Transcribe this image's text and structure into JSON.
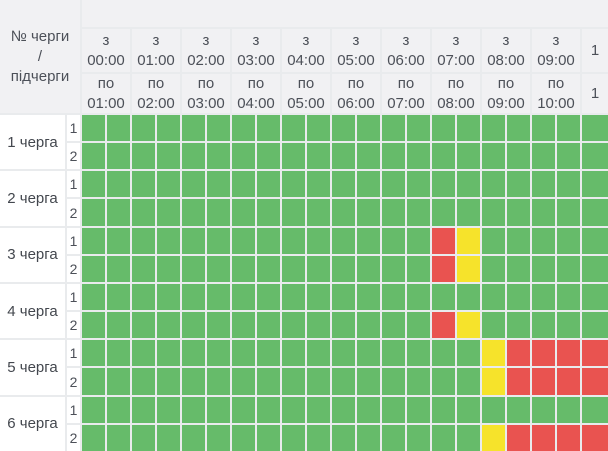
{
  "table": {
    "corner_label_lines": [
      "№ черги",
      "/",
      "підчерги"
    ],
    "time_columns": [
      {
        "from_prefix": "з",
        "from": "00:00",
        "to_prefix": "по",
        "to": "01:00"
      },
      {
        "from_prefix": "з",
        "from": "01:00",
        "to_prefix": "по",
        "to": "02:00"
      },
      {
        "from_prefix": "з",
        "from": "02:00",
        "to_prefix": "по",
        "to": "03:00"
      },
      {
        "from_prefix": "з",
        "from": "03:00",
        "to_prefix": "по",
        "to": "04:00"
      },
      {
        "from_prefix": "з",
        "from": "04:00",
        "to_prefix": "по",
        "to": "05:00"
      },
      {
        "from_prefix": "з",
        "from": "05:00",
        "to_prefix": "по",
        "to": "06:00"
      },
      {
        "from_prefix": "з",
        "from": "06:00",
        "to_prefix": "по",
        "to": "07:00"
      },
      {
        "from_prefix": "з",
        "from": "07:00",
        "to_prefix": "по",
        "to": "08:00"
      },
      {
        "from_prefix": "з",
        "from": "08:00",
        "to_prefix": "по",
        "to": "09:00"
      },
      {
        "from_prefix": "з",
        "from": "09:00",
        "to_prefix": "по",
        "to": "10:00"
      },
      {
        "from_prefix": "",
        "from": "1",
        "to_prefix": "",
        "to": "1",
        "partial": true
      }
    ],
    "cell_colors": {
      "G": "#66bb6a",
      "Y": "#f6e32b",
      "R": "#e95350"
    },
    "queues": [
      {
        "label": "1 черга",
        "subqueues": [
          {
            "num": "1",
            "cells": "GGGGGGGGGGGGGGGGGGGGG"
          },
          {
            "num": "2",
            "cells": "GGGGGGGGGGGGGGGGGGGGG"
          }
        ]
      },
      {
        "label": "2 черга",
        "subqueues": [
          {
            "num": "1",
            "cells": "GGGGGGGGGGGGGGGGGGGGG"
          },
          {
            "num": "2",
            "cells": "GGGGGGGGGGGGGGGGGGGGG"
          }
        ]
      },
      {
        "label": "3 черга",
        "subqueues": [
          {
            "num": "1",
            "cells": "GGGGGGGGGGGGGGRYGGGGG"
          },
          {
            "num": "2",
            "cells": "GGGGGGGGGGGGGGRYGGGGG"
          }
        ]
      },
      {
        "label": "4 черга",
        "subqueues": [
          {
            "num": "1",
            "cells": "GGGGGGGGGGGGGGGGGGGGG"
          },
          {
            "num": "2",
            "cells": "GGGGGGGGGGGGGGRYGGGGG"
          }
        ]
      },
      {
        "label": "5 черга",
        "subqueues": [
          {
            "num": "1",
            "cells": "GGGGGGGGGGGGGGGGYRRRR"
          },
          {
            "num": "2",
            "cells": "GGGGGGGGGGGGGGGGYRRRR"
          }
        ]
      },
      {
        "label": "6 черга",
        "subqueues": [
          {
            "num": "1",
            "cells": "GGGGGGGGGGGGGGGGGGGGG"
          },
          {
            "num": "2",
            "cells": "GGGGGGGGGGGGGGGGYRRRR"
          }
        ]
      }
    ]
  }
}
